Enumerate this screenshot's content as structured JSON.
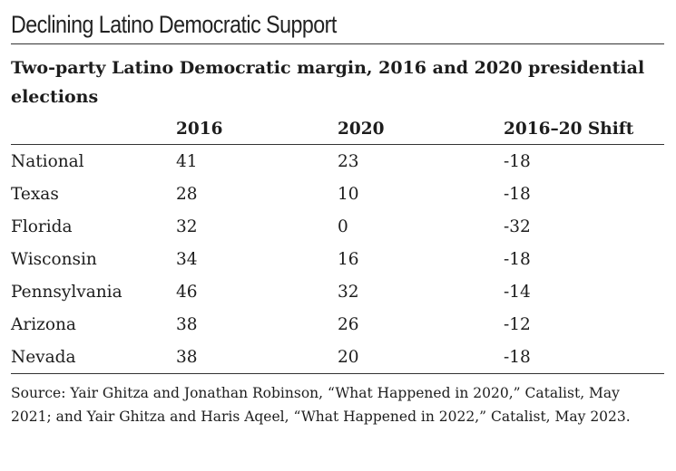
{
  "title": "Declining Latino Democratic Support",
  "subtitle": "Two-party Latino Democratic margin, 2016 and 2020 presidential elections",
  "source": "Source: Yair Ghitza and Jonathan Robinson, “What Happened in 2020,” Catalist, May 2021; and Yair Ghitza and Haris Aqeel, “What Happened in 2022,” Catalist, May 2023.",
  "chart_data": {
    "type": "table",
    "title": "Declining Latino Democratic Support",
    "subtitle": "Two-party Latino Democratic margin, 2016 and 2020 presidential elections",
    "columns": [
      "",
      "2016",
      "2020",
      "2016–20 Shift"
    ],
    "rows": [
      [
        "National",
        "41",
        "23",
        "-18"
      ],
      [
        "Texas",
        "28",
        "10",
        "-18"
      ],
      [
        "Florida",
        "32",
        "0",
        "-32"
      ],
      [
        "Wisconsin",
        "34",
        "16",
        "-18"
      ],
      [
        "Pennsylvania",
        "46",
        "32",
        "-14"
      ],
      [
        "Arizona",
        "38",
        "26",
        "-12"
      ],
      [
        "Nevada",
        "38",
        "20",
        "-18"
      ]
    ]
  }
}
